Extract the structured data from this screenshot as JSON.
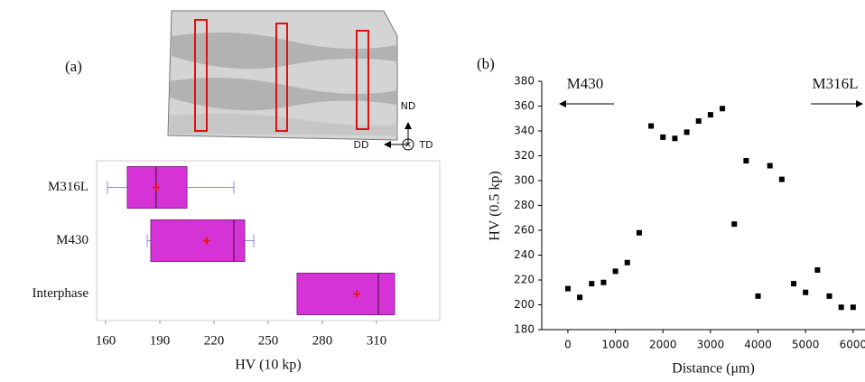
{
  "figure": {
    "panel_labels": [
      "(a)",
      "(b)"
    ],
    "photo_labels": {
      "nd": "ND",
      "dd": "DD",
      "td": "TD"
    }
  },
  "chart_data": [
    {
      "type": "box",
      "orientation": "horizontal",
      "xlabel": "HV (10 kp)",
      "categories": [
        "M316L",
        "M430",
        "Interphase"
      ],
      "boxes": [
        {
          "min": 161,
          "q1": 172,
          "median": 188,
          "q3": 205,
          "max": 231,
          "mean": 188
        },
        {
          "min": 183,
          "q1": 185,
          "median": 231,
          "q3": 237,
          "max": 242,
          "mean": 216
        },
        {
          "min": null,
          "q1": 266,
          "median": 311,
          "q3": 320,
          "max": null,
          "mean": 299
        }
      ],
      "color": "#d633d6",
      "mean_color": "#e8141e",
      "whisker_color": "#8a8ae0",
      "xlim": [
        155,
        345
      ],
      "xticks": [
        160,
        190,
        220,
        250,
        280,
        310
      ]
    },
    {
      "type": "scatter",
      "xlabel": "Distance (μm)",
      "ylabel": "HV (0.5 kp)",
      "annotations": [
        "M430",
        "M316L"
      ],
      "x": [
        0,
        250,
        500,
        750,
        1000,
        1250,
        1500,
        1750,
        2000,
        2250,
        2500,
        2750,
        3000,
        3250,
        3500,
        3750,
        4000,
        4250,
        4500,
        4750,
        5000,
        5250,
        5500,
        5750,
        6000
      ],
      "values": [
        213,
        206,
        217,
        218,
        227,
        234,
        258,
        344,
        335,
        334,
        339,
        348,
        353,
        358,
        265,
        316,
        207,
        312,
        301,
        217,
        210,
        228,
        207,
        198,
        198
      ],
      "color": "#000000",
      "xlim": [
        -550,
        6250
      ],
      "xticks": [
        0,
        1000,
        2000,
        3000,
        4000,
        5000,
        6000
      ],
      "ylim": [
        180,
        380
      ],
      "yticks": [
        180,
        200,
        220,
        240,
        260,
        280,
        300,
        320,
        340,
        360,
        380
      ]
    }
  ]
}
